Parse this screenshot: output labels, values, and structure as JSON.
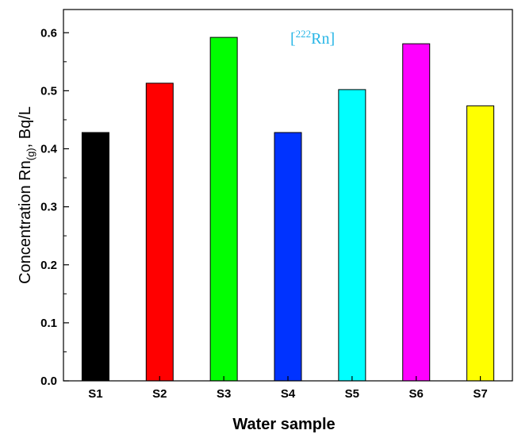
{
  "chart_data": {
    "type": "bar",
    "categories": [
      "S1",
      "S2",
      "S3",
      "S4",
      "S5",
      "S6",
      "S7"
    ],
    "values": [
      0.428,
      0.513,
      0.592,
      0.428,
      0.502,
      0.581,
      0.474
    ],
    "colors": [
      "#000000",
      "#ff0000",
      "#00ff00",
      "#0033ff",
      "#00ffff",
      "#ff00ff",
      "#ffff00"
    ],
    "xlabel": "Water sample",
    "ylabel": {
      "prefix": "Concentration Rn",
      "subscript": "(g)",
      "suffix": ", Bq/L"
    },
    "annotation": {
      "open": "[",
      "superscript": "222",
      "text": "Rn",
      "close": "]",
      "color": "#29b6e6"
    },
    "ylim": [
      0,
      0.64
    ],
    "yticks": [
      "0.0",
      "0.1",
      "0.2",
      "0.3",
      "0.4",
      "0.5",
      "0.6"
    ],
    "grid": false,
    "legend": "none"
  }
}
